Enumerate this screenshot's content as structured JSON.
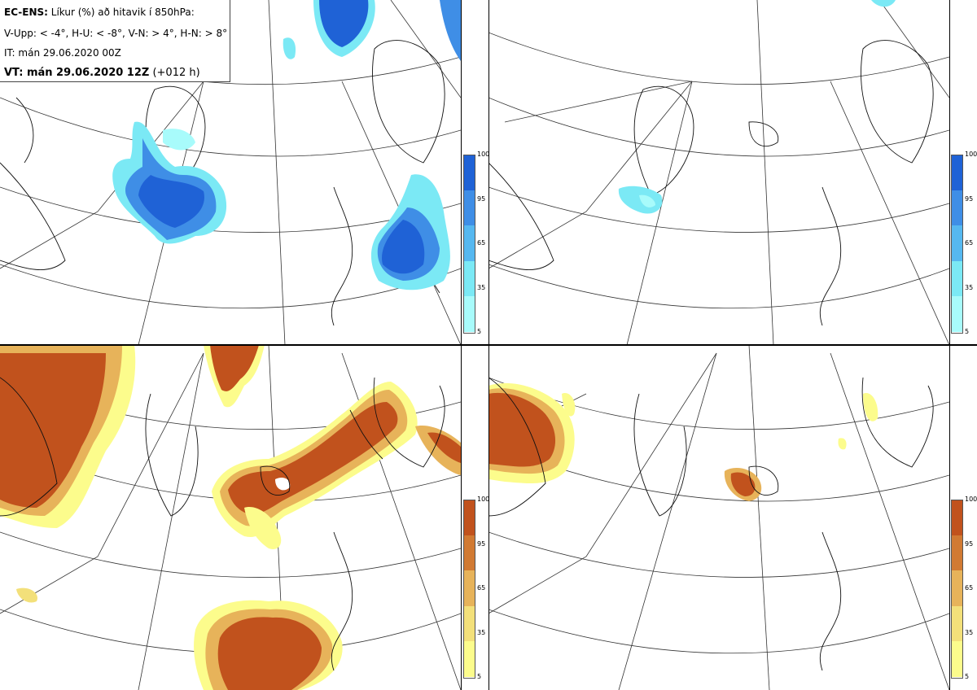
{
  "header": {
    "product": "EC-ENS:",
    "description": " Líkur (%) að hitavik í 850hPa:",
    "thresholds": "V-Upp: < -4°, H-U: < -8°, V-N: > 4°, H-N: > 8°",
    "init_time": "IT: mán 29.06.2020 00Z",
    "valid_label": "VT: mán 29.06.2020 12Z",
    "lead": " (+012 h)"
  },
  "panels": [
    {
      "id": "V-Upp",
      "color_scale": "blue"
    },
    {
      "id": "H-U",
      "color_scale": "blue"
    },
    {
      "id": "V-N",
      "color_scale": "orange"
    },
    {
      "id": "H-N",
      "color_scale": "orange"
    }
  ],
  "colorbar": {
    "ticks": [
      "100",
      "95",
      "65",
      "35",
      "5"
    ],
    "blue_colors": [
      "#1f62d6",
      "#3f8ee6",
      "#56b8f0",
      "#7be9f5",
      "#a8fbfb"
    ],
    "orange_colors": [
      "#c1521d",
      "#d17a33",
      "#e7b35a",
      "#f3e07a",
      "#fcfc8c"
    ]
  }
}
